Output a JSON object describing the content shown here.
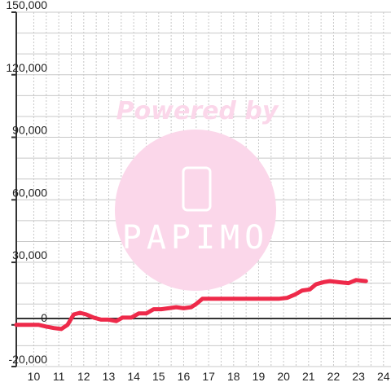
{
  "chart_data": {
    "type": "line",
    "title": "",
    "xlabel": "",
    "ylabel": "",
    "x_ticks": [
      "10",
      "11",
      "12",
      "13",
      "14",
      "15",
      "16",
      "17",
      "18",
      "19",
      "20",
      "21",
      "22",
      "23",
      "24"
    ],
    "y_ticks": [
      "150,000",
      "120,000",
      "90,000",
      "60,000",
      "30,000",
      "0",
      "-20,000"
    ],
    "xlim": [
      9.3,
      24.3
    ],
    "ylim": [
      -20000,
      150000
    ],
    "grid": true,
    "colors": {
      "line": "#ee2a4a",
      "zero_line": "#333333",
      "axis": "#333333",
      "grid": "#c8c8c8",
      "watermark": "#fbd7ea"
    },
    "series": [
      {
        "points": [
          [
            9.3,
            0
          ],
          [
            10.2,
            0
          ],
          [
            10.5,
            -800
          ],
          [
            10.8,
            -1500
          ],
          [
            11.1,
            -2000
          ],
          [
            11.35,
            0
          ],
          [
            11.6,
            5000
          ],
          [
            11.85,
            5800
          ],
          [
            12.1,
            5000
          ],
          [
            12.4,
            3500
          ],
          [
            12.7,
            2500
          ],
          [
            13.0,
            2500
          ],
          [
            13.3,
            1800
          ],
          [
            13.55,
            3500
          ],
          [
            13.9,
            3500
          ],
          [
            14.2,
            5500
          ],
          [
            14.5,
            5500
          ],
          [
            14.8,
            7500
          ],
          [
            15.1,
            7500
          ],
          [
            15.4,
            8000
          ],
          [
            15.7,
            8500
          ],
          [
            16.0,
            8000
          ],
          [
            16.3,
            8500
          ],
          [
            16.5,
            10000
          ],
          [
            16.75,
            12500
          ],
          [
            17.0,
            12500
          ],
          [
            18.0,
            12500
          ],
          [
            19.0,
            12500
          ],
          [
            19.8,
            12500
          ],
          [
            20.15,
            13000
          ],
          [
            20.45,
            14500
          ],
          [
            20.75,
            16500
          ],
          [
            21.05,
            17000
          ],
          [
            21.3,
            19500
          ],
          [
            21.6,
            20500
          ],
          [
            21.85,
            21000
          ],
          [
            22.2,
            20500
          ],
          [
            22.6,
            20000
          ],
          [
            22.9,
            21500
          ],
          [
            23.3,
            21000
          ]
        ]
      }
    ]
  },
  "watermark": {
    "text": "Powered by",
    "brand": "PAPIMO",
    "icon": "phone-icon"
  }
}
